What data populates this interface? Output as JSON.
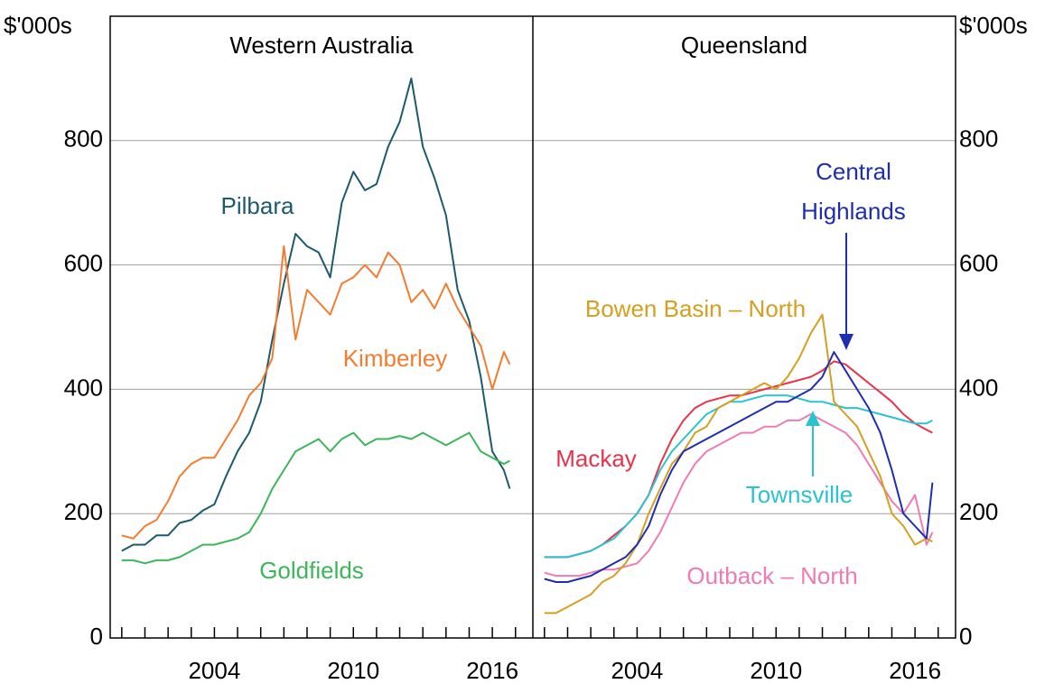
{
  "chart_data": [
    {
      "type": "line",
      "title": "Western Australia",
      "y_label": "$'000s",
      "x": [
        2000,
        2000.5,
        2001,
        2001.5,
        2002,
        2002.5,
        2003,
        2003.5,
        2004,
        2004.5,
        2005,
        2005.5,
        2006,
        2006.5,
        2007,
        2007.5,
        2008,
        2008.5,
        2009,
        2009.5,
        2010,
        2010.5,
        2011,
        2011.5,
        2012,
        2012.5,
        2013,
        2013.5,
        2014,
        2014.5,
        2015,
        2015.5,
        2016,
        2016.5,
        2016.75
      ],
      "series": [
        {
          "name": "Pilbara",
          "color": "#1d5a6b",
          "values": [
            140,
            150,
            150,
            165,
            165,
            185,
            190,
            205,
            215,
            260,
            300,
            330,
            380,
            480,
            570,
            650,
            630,
            620,
            580,
            700,
            750,
            720,
            730,
            790,
            830,
            900,
            790,
            740,
            680,
            560,
            510,
            420,
            300,
            270,
            240
          ]
        },
        {
          "name": "Kimberley",
          "color": "#f47c30",
          "values": [
            165,
            160,
            180,
            190,
            220,
            260,
            280,
            290,
            290,
            320,
            350,
            390,
            410,
            450,
            630,
            480,
            560,
            540,
            520,
            570,
            580,
            600,
            580,
            620,
            600,
            540,
            560,
            530,
            570,
            530,
            500,
            470,
            400,
            460,
            440
          ]
        },
        {
          "name": "Goldfields",
          "color": "#3cb65a",
          "values": [
            125,
            125,
            120,
            125,
            125,
            130,
            140,
            150,
            150,
            155,
            160,
            170,
            200,
            240,
            270,
            300,
            310,
            320,
            300,
            320,
            330,
            310,
            320,
            320,
            325,
            320,
            330,
            320,
            310,
            320,
            330,
            300,
            290,
            280,
            285
          ]
        }
      ],
      "xlim": [
        1999.5,
        2017.75
      ],
      "xticks": [
        2004,
        2010,
        2016
      ],
      "xticks_minor": [
        2000,
        2001,
        2002,
        2003,
        2004,
        2005,
        2006,
        2007,
        2008,
        2009,
        2010,
        2011,
        2012,
        2013,
        2014,
        2015,
        2016,
        2017
      ],
      "ylim": [
        0,
        1000
      ],
      "yticks": [
        0,
        200,
        400,
        600,
        800
      ],
      "grid": true
    },
    {
      "type": "line",
      "title": "Queensland",
      "y_label": "$'000s",
      "x": [
        2000,
        2000.5,
        2001,
        2001.5,
        2002,
        2002.5,
        2003,
        2003.5,
        2004,
        2004.5,
        2005,
        2005.5,
        2006,
        2006.5,
        2007,
        2007.5,
        2008,
        2008.5,
        2009,
        2009.5,
        2010,
        2010.5,
        2011,
        2011.5,
        2012,
        2012.5,
        2013,
        2013.5,
        2014,
        2014.5,
        2015,
        2015.5,
        2016,
        2016.5,
        2016.75
      ],
      "series": [
        {
          "name": "Mackay",
          "color": "#e8334a",
          "values": [
            130,
            130,
            130,
            135,
            140,
            150,
            165,
            180,
            200,
            230,
            280,
            320,
            350,
            370,
            380,
            385,
            390,
            390,
            395,
            400,
            405,
            410,
            415,
            420,
            430,
            445,
            440,
            425,
            410,
            395,
            380,
            360,
            345,
            335,
            330
          ]
        },
        {
          "name": "Townsville",
          "color": "#2ac4cf",
          "values": [
            130,
            130,
            130,
            135,
            140,
            150,
            160,
            180,
            200,
            230,
            270,
            300,
            320,
            340,
            360,
            370,
            380,
            380,
            385,
            390,
            390,
            390,
            385,
            380,
            380,
            375,
            370,
            370,
            365,
            360,
            355,
            350,
            345,
            345,
            350
          ]
        },
        {
          "name": "Outback – North",
          "color": "#f07ab4",
          "values": [
            105,
            100,
            100,
            100,
            105,
            110,
            110,
            115,
            120,
            140,
            170,
            210,
            250,
            280,
            300,
            310,
            320,
            330,
            330,
            340,
            340,
            350,
            350,
            360,
            350,
            340,
            330,
            310,
            280,
            250,
            220,
            200,
            230,
            150,
            170
          ]
        },
        {
          "name": "Bowen Basin – North",
          "color": "#d4a020",
          "values": [
            40,
            40,
            50,
            60,
            70,
            90,
            100,
            120,
            150,
            200,
            240,
            280,
            300,
            330,
            340,
            370,
            380,
            390,
            400,
            410,
            400,
            420,
            450,
            490,
            520,
            380,
            360,
            340,
            300,
            260,
            200,
            180,
            150,
            160,
            155
          ]
        },
        {
          "name": "Central Highlands",
          "color": "#1f2db0",
          "values": [
            95,
            90,
            90,
            95,
            100,
            110,
            120,
            130,
            150,
            180,
            230,
            270,
            300,
            310,
            320,
            330,
            340,
            350,
            360,
            370,
            380,
            380,
            390,
            400,
            420,
            460,
            430,
            400,
            370,
            330,
            270,
            200,
            180,
            160,
            250
          ]
        }
      ],
      "xlim": [
        1999.5,
        2017.75
      ],
      "xticks": [
        2004,
        2010,
        2016
      ],
      "xticks_minor": [
        2000,
        2001,
        2002,
        2003,
        2004,
        2005,
        2006,
        2007,
        2008,
        2009,
        2010,
        2011,
        2012,
        2013,
        2014,
        2015,
        2016,
        2017
      ],
      "ylim": [
        0,
        1000
      ],
      "yticks": [
        0,
        200,
        400,
        600,
        800
      ],
      "grid": true
    }
  ]
}
